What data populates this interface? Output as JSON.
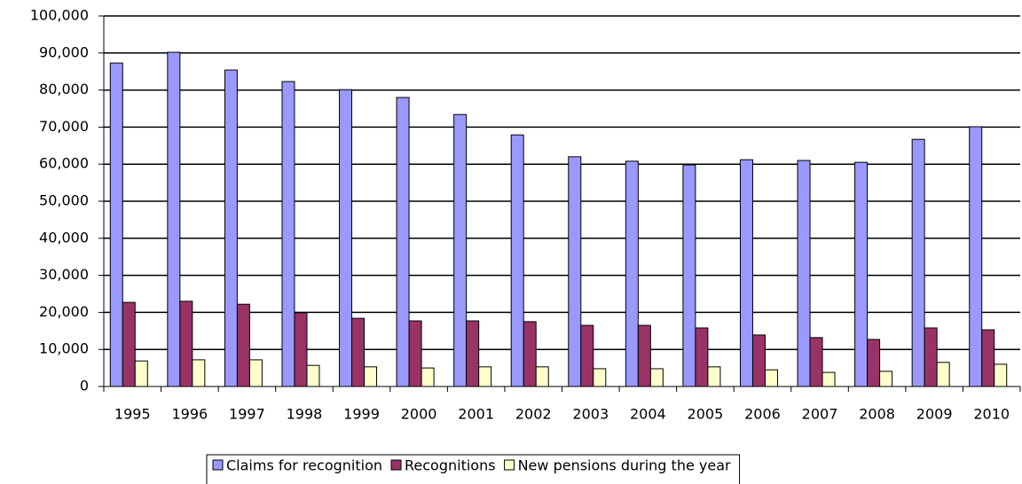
{
  "chart_data": {
    "type": "bar",
    "categories": [
      "1995",
      "1996",
      "1997",
      "1998",
      "1999",
      "2000",
      "2001",
      "2002",
      "2003",
      "2004",
      "2005",
      "2006",
      "2007",
      "2008",
      "2009",
      "2010"
    ],
    "series": [
      {
        "name": "Claims for recognition",
        "color": "#9999ff",
        "values": [
          87300,
          90200,
          85400,
          82300,
          80100,
          78000,
          73400,
          67900,
          62000,
          60800,
          59800,
          61200,
          61000,
          60500,
          66700,
          70100
        ]
      },
      {
        "name": "Recognitions",
        "color": "#993366",
        "values": [
          22700,
          23000,
          22200,
          19900,
          18400,
          17700,
          17700,
          17500,
          16500,
          16500,
          15800,
          13900,
          13200,
          12700,
          15800,
          15300
        ]
      },
      {
        "name": "New pensions during the year",
        "color": "#ffffcc",
        "values": [
          6900,
          7200,
          7200,
          5700,
          5300,
          5000,
          5300,
          5300,
          4800,
          4800,
          5300,
          4500,
          3800,
          4100,
          6500,
          6000
        ]
      }
    ],
    "ylim": [
      0,
      100000
    ],
    "yticks": [
      0,
      {
        "value": 10000,
        "label": "10,000"
      },
      {
        "value": 20000,
        "label": "20,000"
      },
      {
        "value": 30000,
        "label": "30,000"
      },
      {
        "value": 40000,
        "label": "40,000"
      },
      {
        "value": 50000,
        "label": "50,000"
      },
      {
        "value": 60000,
        "label": "60,000"
      },
      {
        "value": 70000,
        "label": "70,000"
      },
      {
        "value": 80000,
        "label": "80,000"
      },
      {
        "value": 90000,
        "label": "90,000"
      },
      {
        "value": 100000,
        "label": "100,000"
      }
    ],
    "grid": true,
    "legend": "bottom"
  }
}
